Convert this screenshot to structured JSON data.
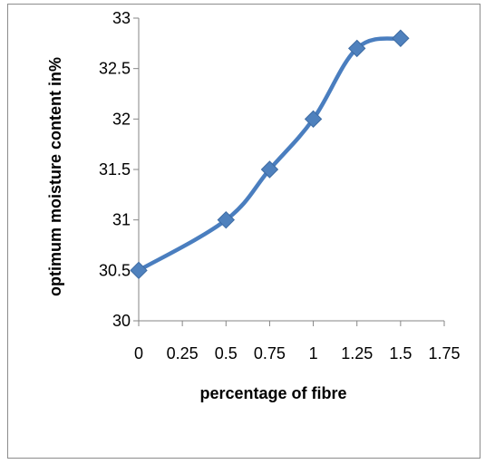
{
  "chart_data": {
    "type": "line",
    "title": "",
    "xlabel": "percentage of fibre",
    "ylabel": "optimum moisture content in%",
    "x": [
      0,
      0.5,
      0.75,
      1,
      1.25,
      1.5
    ],
    "series": [
      {
        "values": [
          30.5,
          31,
          31.5,
          32,
          32.7,
          32.8
        ]
      }
    ],
    "xlim": [
      0,
      1.75
    ],
    "ylim": [
      30,
      33
    ],
    "x_ticks": [
      "0",
      "0.25",
      "0.5",
      "0.75",
      "1",
      "1.25",
      "1.5",
      "1.75"
    ],
    "y_ticks": [
      "30",
      "30.5",
      "31",
      "31.5",
      "32",
      "32.5",
      "33"
    ],
    "smooth_line": true,
    "marker": "diamond",
    "grid": false,
    "legend": "none",
    "colors": {
      "series": "#4a7ebf",
      "marker": "#4f81bd",
      "axis": "#868686"
    }
  }
}
